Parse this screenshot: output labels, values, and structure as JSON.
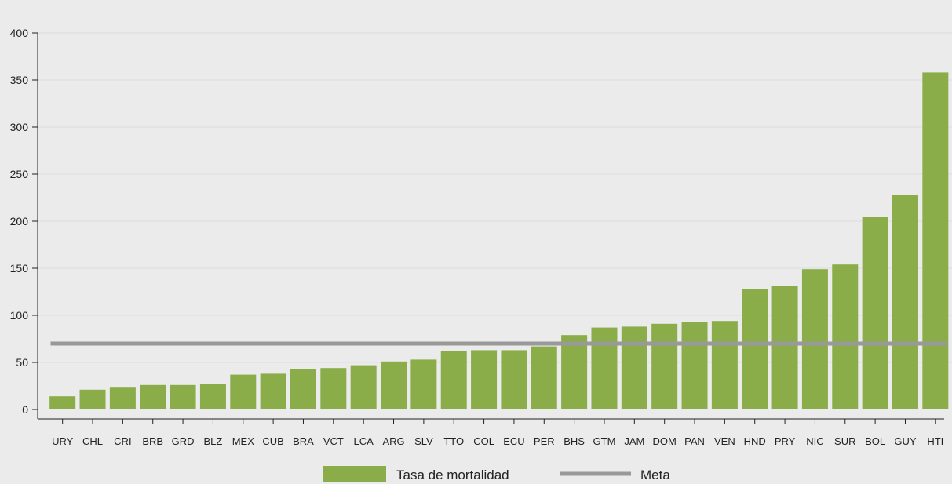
{
  "chart_data": {
    "type": "bar",
    "categories": [
      "URY",
      "CHL",
      "CRI",
      "BRB",
      "GRD",
      "BLZ",
      "MEX",
      "CUB",
      "BRA",
      "VCT",
      "LCA",
      "ARG",
      "SLV",
      "TTO",
      "COL",
      "ECU",
      "PER",
      "BHS",
      "GTM",
      "JAM",
      "DOM",
      "PAN",
      "VEN",
      "HND",
      "PRY",
      "NIC",
      "SUR",
      "BOL",
      "GUY",
      "HTI"
    ],
    "series": [
      {
        "name": "Tasa de mortalidad",
        "type": "bar",
        "color": "#8aad4a",
        "values": [
          14,
          21,
          24,
          26,
          26,
          27,
          37,
          38,
          43,
          44,
          47,
          51,
          53,
          62,
          63,
          63,
          67,
          79,
          87,
          88,
          91,
          93,
          94,
          128,
          131,
          149,
          154,
          205,
          228,
          358
        ]
      },
      {
        "name": "Meta",
        "type": "line",
        "color": "#999999",
        "values": [
          70,
          70,
          70,
          70,
          70,
          70,
          70,
          70,
          70,
          70,
          70,
          70,
          70,
          70,
          70,
          70,
          70,
          70,
          70,
          70,
          70,
          70,
          70,
          70,
          70,
          70,
          70,
          70,
          70,
          70
        ]
      }
    ],
    "y_ticks": [
      0,
      50,
      100,
      150,
      200,
      250,
      300,
      350,
      400
    ],
    "ylim": [
      -10,
      410
    ],
    "title": "",
    "xlabel": "",
    "ylabel": "",
    "grid": true,
    "legend_position": "bottom-center"
  }
}
